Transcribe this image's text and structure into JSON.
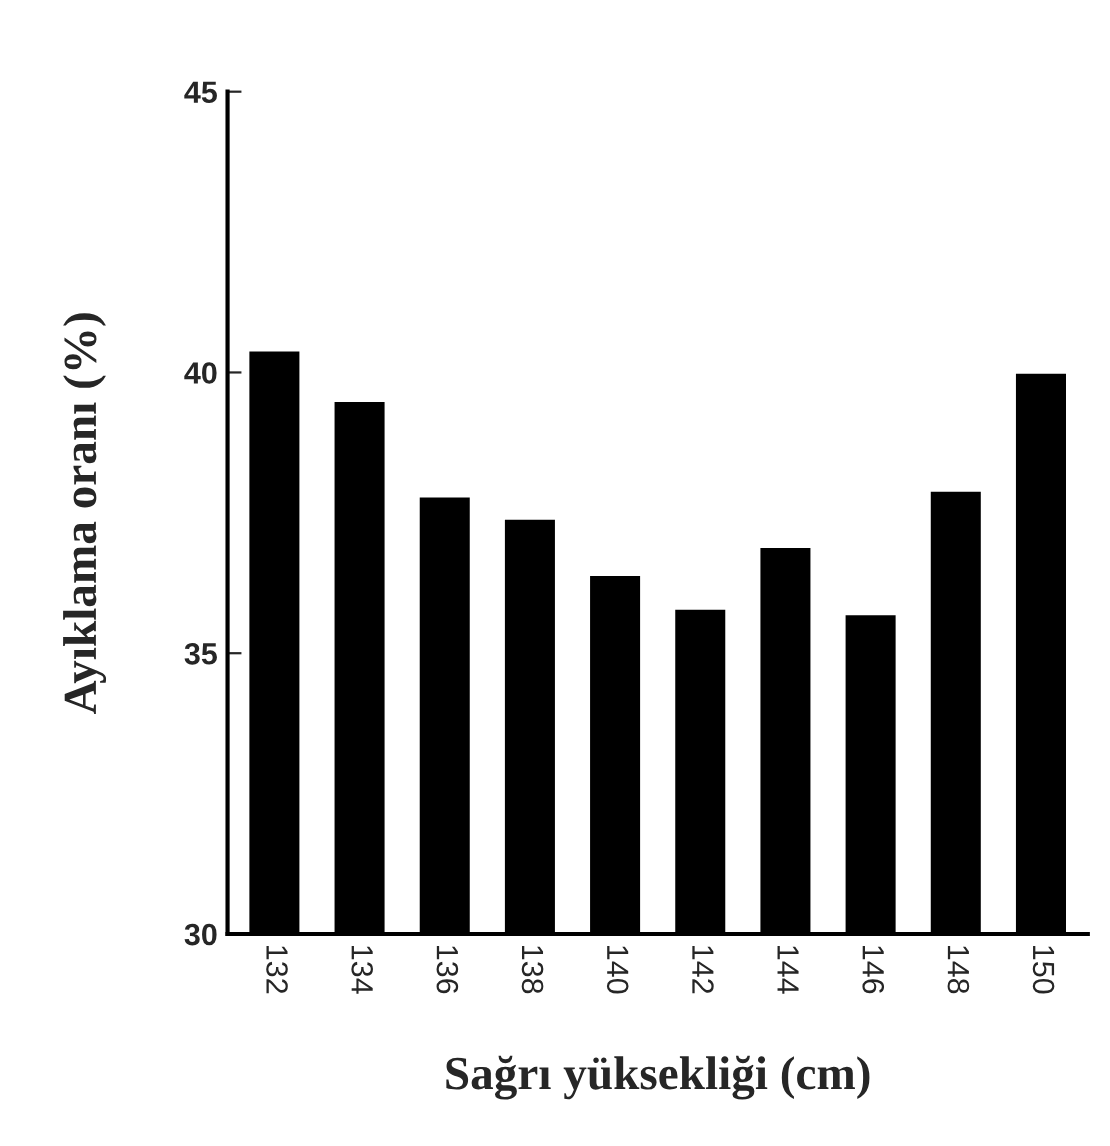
{
  "chart_data": {
    "type": "bar",
    "categories": [
      "132",
      "134",
      "136",
      "138",
      "140",
      "142",
      "144",
      "146",
      "148",
      "150"
    ],
    "values": [
      40.4,
      39.5,
      37.8,
      37.4,
      36.4,
      35.8,
      36.9,
      35.7,
      37.9,
      40.0
    ],
    "color": "#000000",
    "xlabel": "Sağrı yüksekliği (cm)",
    "ylabel": "Ayıklama oranı (%)",
    "ylim": [
      30,
      45
    ],
    "yticks": [
      30,
      35,
      40,
      45
    ],
    "grid": false
  }
}
